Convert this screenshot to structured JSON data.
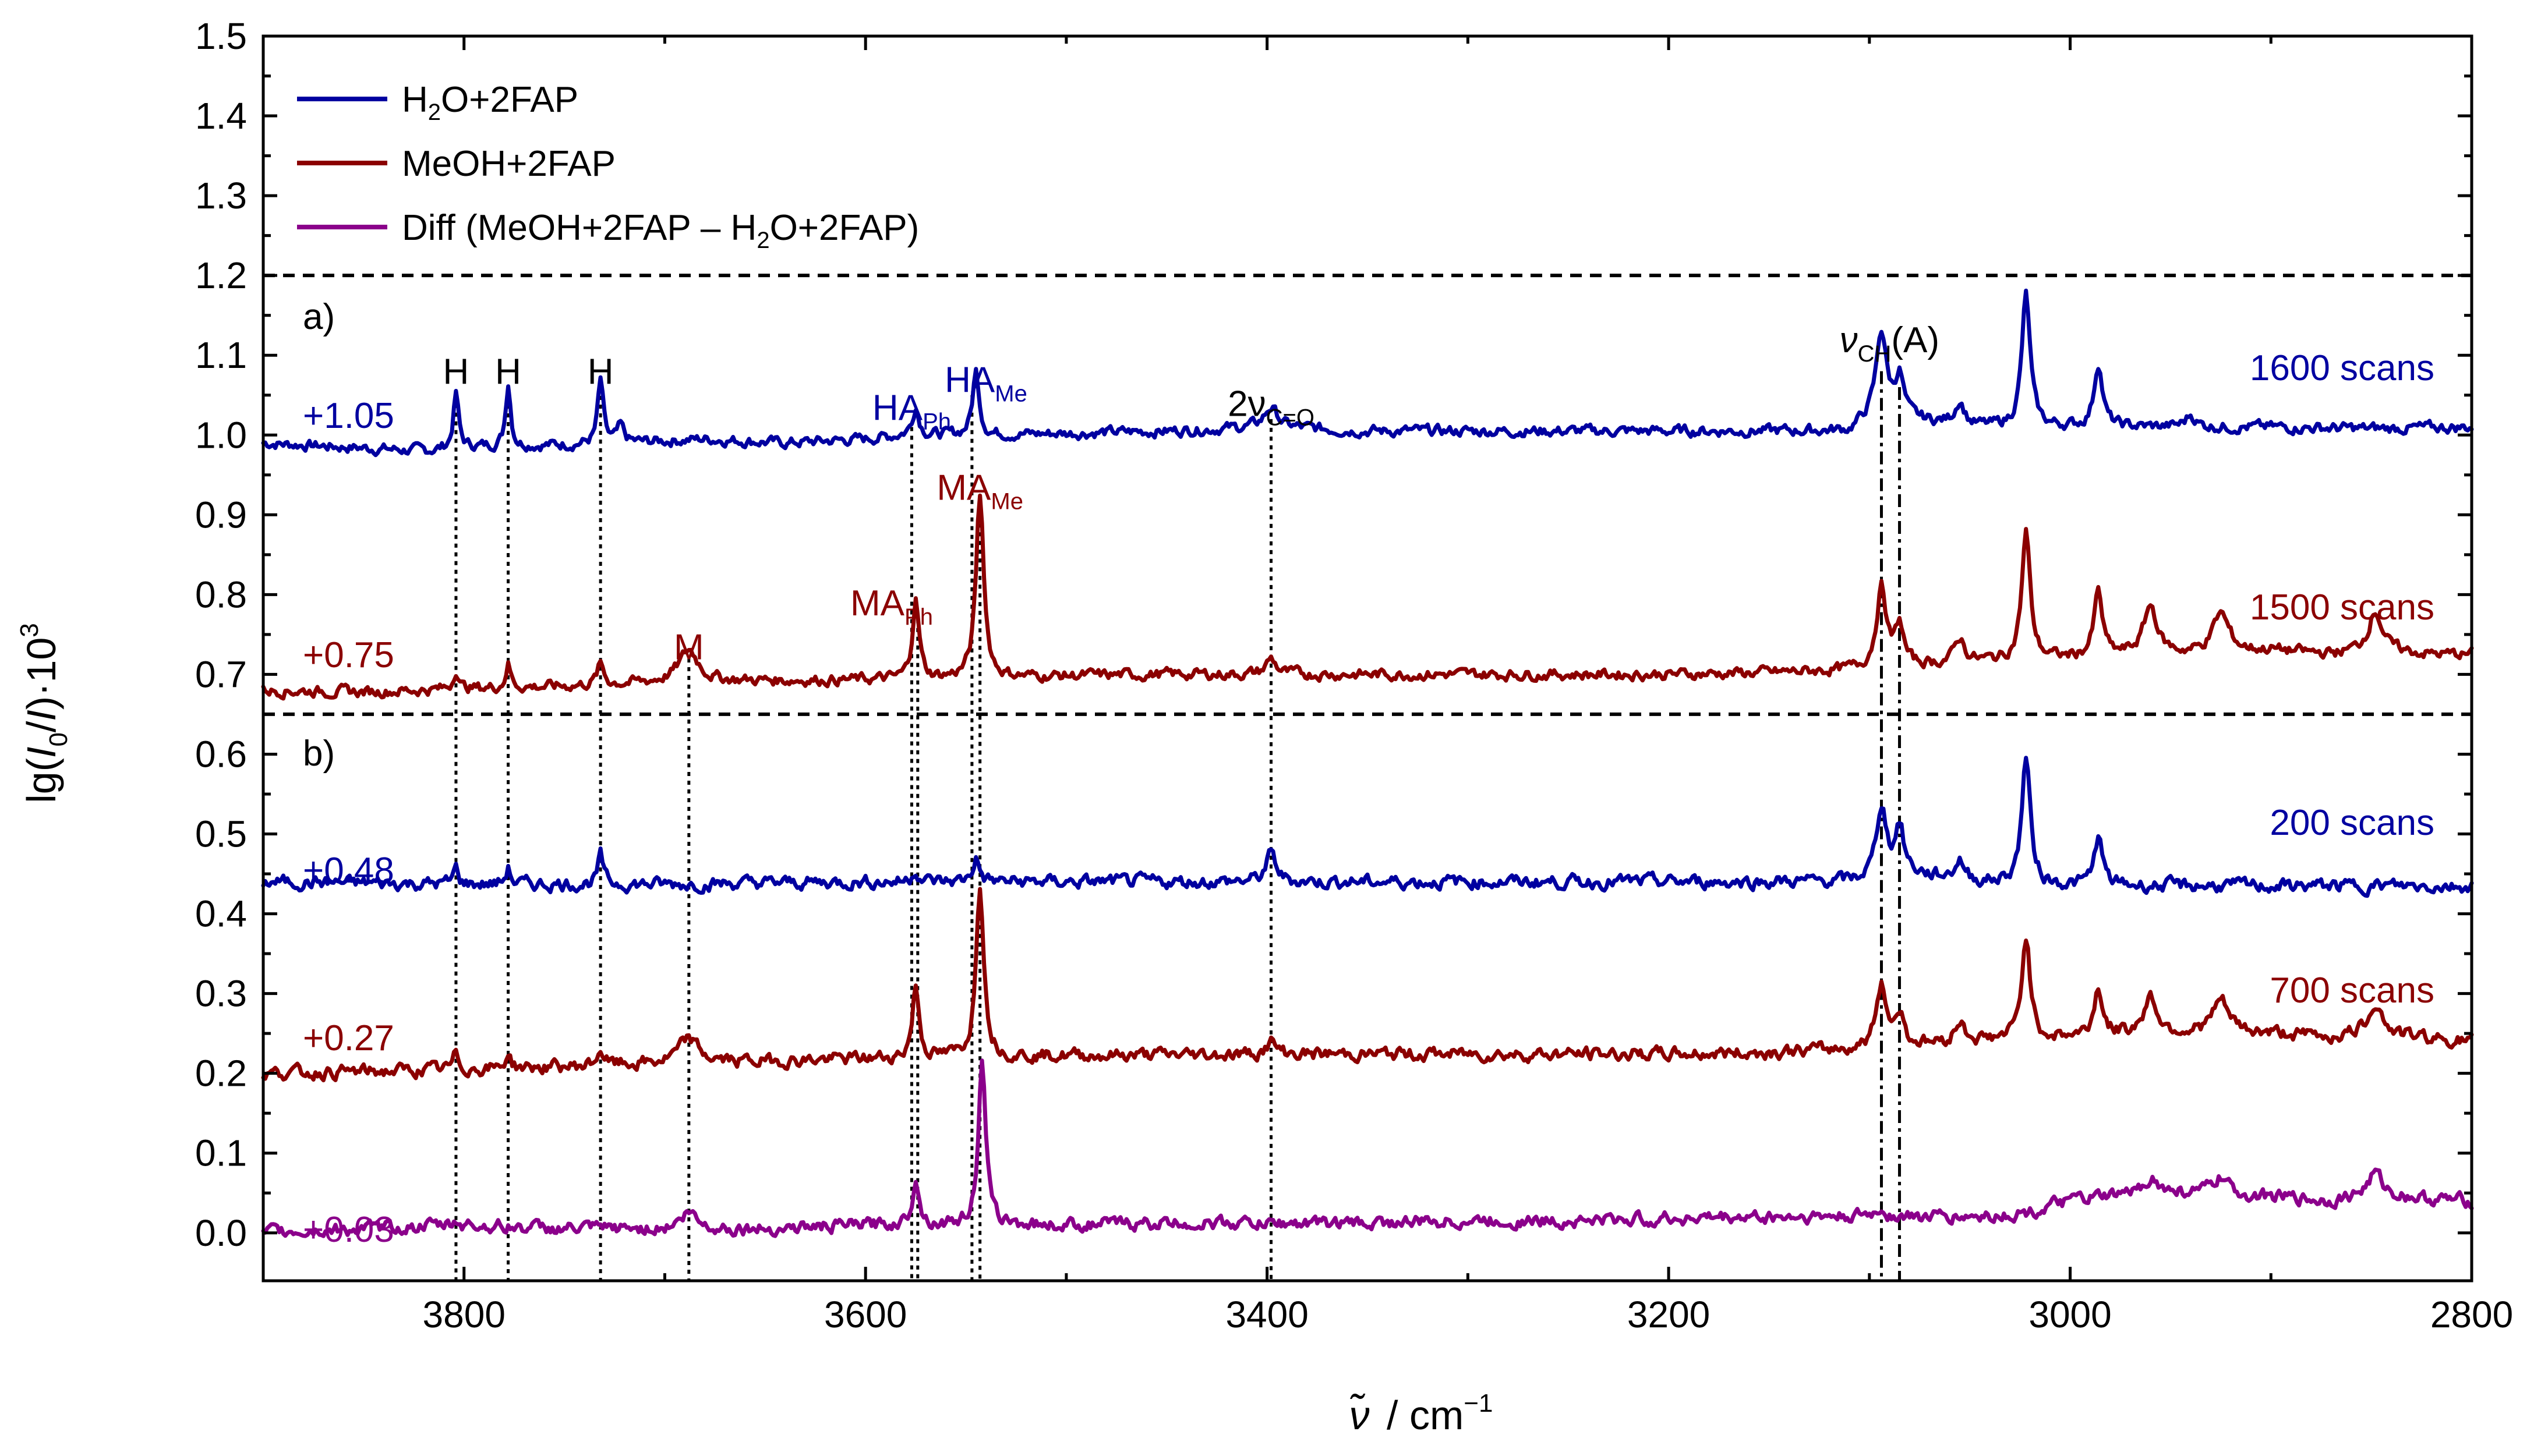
{
  "chart_data": {
    "type": "line",
    "title": "",
    "xlabel_symbol": "ν̃",
    "xlabel_unit": "cm",
    "xlabel_exp": "−1",
    "ylabel": {
      "pre": "lg(",
      "i0": "I",
      "i0sub": "0",
      "slash": "/",
      "i": "I",
      "post": ")·10",
      "exp": "3"
    },
    "xlim": [
      3900,
      2800
    ],
    "ylim": [
      -0.06,
      1.5
    ],
    "x_ticks": [
      3800,
      3600,
      3400,
      3200,
      3000,
      2800
    ],
    "y_ticks": [
      0.0,
      0.1,
      0.2,
      0.3,
      0.4,
      0.5,
      0.6,
      0.7,
      0.8,
      0.9,
      1.0,
      1.1,
      1.2,
      1.3,
      1.4,
      1.5
    ],
    "separators": [
      1.2,
      0.65
    ],
    "panel_labels": {
      "a": "a)",
      "b": "b)"
    },
    "legend": [
      {
        "name": "H2O+2FAP",
        "parts": [
          "H",
          "2",
          "O+2FAP"
        ],
        "color": "#0000a0"
      },
      {
        "name": "MeOH+2FAP",
        "parts": [
          "MeOH+2FAP",
          "",
          ""
        ],
        "color": "#8b0000"
      },
      {
        "name": "Diff (MeOH+2FAP − H2O+2FAP)",
        "parts": [
          "Diff (MeOH+2FAP – H",
          "2",
          "O+2FAP)"
        ],
        "color": "#8b008b"
      }
    ],
    "series": [
      {
        "name": "H2O+2FAP (a)",
        "color": "#0000a0",
        "offset": 1.05,
        "offset_label": "+1.05",
        "scans": "1600 scans",
        "noise": 0.005,
        "points": [
          [
            3900,
            -0.06
          ],
          [
            3860,
            -0.065
          ],
          [
            3820,
            -0.07
          ],
          [
            3800,
            -0.065
          ],
          [
            3760,
            -0.063
          ],
          [
            3720,
            -0.06
          ],
          [
            3680,
            -0.055
          ],
          [
            3640,
            -0.06
          ],
          [
            3600,
            -0.055
          ],
          [
            3580,
            -0.05
          ],
          [
            3540,
            -0.05
          ],
          [
            3500,
            -0.048
          ],
          [
            3450,
            -0.045
          ],
          [
            3400,
            -0.04
          ],
          [
            3350,
            -0.045
          ],
          [
            3300,
            -0.045
          ],
          [
            3250,
            -0.045
          ],
          [
            3200,
            -0.045
          ],
          [
            3150,
            -0.045
          ],
          [
            3110,
            -0.045
          ],
          [
            3095,
            -0.02
          ],
          [
            3080,
            -0.03
          ],
          [
            3050,
            -0.04
          ],
          [
            3000,
            -0.04
          ],
          [
            2950,
            -0.04
          ],
          [
            2900,
            -0.04
          ],
          [
            2850,
            -0.042
          ],
          [
            2800,
            -0.04
          ]
        ],
        "peaks": [
          [
            3804,
            0.07,
            1.5
          ],
          [
            3778,
            0.08,
            1.5
          ],
          [
            3732,
            0.08,
            1.6
          ],
          [
            3722,
            0.02,
            2
          ],
          [
            3575,
            0.035,
            2
          ],
          [
            3545,
            0.08,
            2
          ],
          [
            3398,
            0.025,
            4
          ],
          [
            3094,
            0.1,
            3
          ],
          [
            3085,
            0.05,
            2.5
          ],
          [
            3055,
            0.03,
            3
          ],
          [
            3022,
            0.165,
            2.5
          ],
          [
            2986,
            0.08,
            2.5
          ],
          [
            2940,
            0.015,
            3
          ]
        ]
      },
      {
        "name": "MeOH+2FAP (a)",
        "color": "#8b0000",
        "offset": 0.75,
        "offset_label": "+0.75",
        "scans": "1500 scans",
        "noise": 0.005,
        "points": [
          [
            3900,
            -0.07
          ],
          [
            3850,
            -0.072
          ],
          [
            3800,
            -0.068
          ],
          [
            3750,
            -0.065
          ],
          [
            3700,
            -0.06
          ],
          [
            3650,
            -0.058
          ],
          [
            3600,
            -0.057
          ],
          [
            3550,
            -0.055
          ],
          [
            3500,
            -0.052
          ],
          [
            3450,
            -0.05
          ],
          [
            3400,
            -0.05
          ],
          [
            3350,
            -0.05
          ],
          [
            3300,
            -0.05
          ],
          [
            3250,
            -0.05
          ],
          [
            3200,
            -0.05
          ],
          [
            3150,
            -0.048
          ],
          [
            3110,
            -0.045
          ],
          [
            3080,
            -0.04
          ],
          [
            3050,
            -0.035
          ],
          [
            3000,
            -0.03
          ],
          [
            2960,
            -0.025
          ],
          [
            2930,
            -0.025
          ],
          [
            2900,
            -0.02
          ],
          [
            2870,
            -0.025
          ],
          [
            2850,
            -0.02
          ],
          [
            2820,
            -0.025
          ],
          [
            2800,
            -0.025
          ]
        ],
        "peaks": [
          [
            3804,
            0.025,
            1.5
          ],
          [
            3778,
            0.03,
            1.5
          ],
          [
            3732,
            0.025,
            2
          ],
          [
            3688,
            0.04,
            6
          ],
          [
            3575,
            0.1,
            2
          ],
          [
            3543,
            0.23,
            2.3
          ],
          [
            3398,
            0.02,
            3
          ],
          [
            3094,
            0.1,
            3
          ],
          [
            3085,
            0.05,
            2.5
          ],
          [
            3055,
            0.03,
            3
          ],
          [
            3022,
            0.16,
            2.5
          ],
          [
            2986,
            0.08,
            2.5
          ],
          [
            2960,
            0.06,
            4
          ],
          [
            2925,
            0.05,
            5
          ],
          [
            2848,
            0.05,
            4
          ]
        ]
      },
      {
        "name": "H2O+2FAP (b)",
        "color": "#0000a0",
        "offset": 0.48,
        "offset_label": "+0.48",
        "scans": "200 scans",
        "noise": 0.006,
        "points": [
          [
            3900,
            -0.04
          ],
          [
            3800,
            -0.043
          ],
          [
            3700,
            -0.043
          ],
          [
            3600,
            -0.04
          ],
          [
            3500,
            -0.04
          ],
          [
            3400,
            -0.04
          ],
          [
            3300,
            -0.04
          ],
          [
            3200,
            -0.04
          ],
          [
            3110,
            -0.04
          ],
          [
            3080,
            -0.03
          ],
          [
            3050,
            -0.04
          ],
          [
            3000,
            -0.045
          ],
          [
            2900,
            -0.045
          ],
          [
            2800,
            -0.045
          ]
        ],
        "peaks": [
          [
            3804,
            0.02,
            1.5
          ],
          [
            3778,
            0.02,
            1.5
          ],
          [
            3732,
            0.035,
            1.6
          ],
          [
            3575,
            0.015,
            2
          ],
          [
            3545,
            0.03,
            2
          ],
          [
            3398,
            0.035,
            3
          ],
          [
            3094,
            0.09,
            3
          ],
          [
            3085,
            0.06,
            2.5
          ],
          [
            3055,
            0.025,
            3
          ],
          [
            3022,
            0.16,
            2.5
          ],
          [
            2986,
            0.06,
            2.5
          ]
        ]
      },
      {
        "name": "MeOH+2FAP (b)",
        "color": "#8b0000",
        "offset": 0.27,
        "offset_label": "+0.27",
        "scans": "700 scans",
        "noise": 0.006,
        "points": [
          [
            3900,
            -0.07
          ],
          [
            3850,
            -0.068
          ],
          [
            3800,
            -0.065
          ],
          [
            3750,
            -0.062
          ],
          [
            3700,
            -0.058
          ],
          [
            3650,
            -0.055
          ],
          [
            3600,
            -0.052
          ],
          [
            3550,
            -0.05
          ],
          [
            3500,
            -0.048
          ],
          [
            3450,
            -0.047
          ],
          [
            3400,
            -0.046
          ],
          [
            3350,
            -0.046
          ],
          [
            3300,
            -0.046
          ],
          [
            3250,
            -0.046
          ],
          [
            3200,
            -0.046
          ],
          [
            3150,
            -0.044
          ],
          [
            3110,
            -0.04
          ],
          [
            3080,
            -0.035
          ],
          [
            3050,
            -0.03
          ],
          [
            3000,
            -0.025
          ],
          [
            2960,
            -0.02
          ],
          [
            2930,
            -0.02
          ],
          [
            2900,
            -0.02
          ],
          [
            2870,
            -0.025
          ],
          [
            2850,
            -0.02
          ],
          [
            2800,
            -0.03
          ]
        ],
        "peaks": [
          [
            3804,
            0.02,
            1.5
          ],
          [
            3778,
            0.02,
            1.5
          ],
          [
            3732,
            0.02,
            2
          ],
          [
            3688,
            0.03,
            6
          ],
          [
            3575,
            0.09,
            2
          ],
          [
            3543,
            0.22,
            2.3
          ],
          [
            3398,
            0.015,
            3
          ],
          [
            3094,
            0.08,
            3
          ],
          [
            3085,
            0.04,
            2.5
          ],
          [
            3055,
            0.025,
            3
          ],
          [
            3022,
            0.13,
            2.5
          ],
          [
            2986,
            0.06,
            2.5
          ],
          [
            2960,
            0.045,
            4
          ],
          [
            2925,
            0.04,
            5
          ],
          [
            2848,
            0.04,
            4
          ]
        ]
      },
      {
        "name": "Diff (MeOH+2FAP − H2O+2FAP)",
        "color": "#8b008b",
        "offset": 0.03,
        "offset_label": "+0.03",
        "scans": "",
        "noise": 0.006,
        "points": [
          [
            3900,
            -0.03
          ],
          [
            3850,
            -0.025
          ],
          [
            3800,
            -0.02
          ],
          [
            3750,
            -0.025
          ],
          [
            3700,
            -0.025
          ],
          [
            3650,
            -0.025
          ],
          [
            3600,
            -0.02
          ],
          [
            3550,
            -0.02
          ],
          [
            3500,
            -0.02
          ],
          [
            3450,
            -0.018
          ],
          [
            3400,
            -0.018
          ],
          [
            3350,
            -0.018
          ],
          [
            3300,
            -0.015
          ],
          [
            3250,
            -0.015
          ],
          [
            3200,
            -0.012
          ],
          [
            3150,
            -0.01
          ],
          [
            3100,
            -0.01
          ],
          [
            3050,
            -0.01
          ],
          [
            3020,
            -0.005
          ],
          [
            3000,
            0.01
          ],
          [
            2960,
            0.02
          ],
          [
            2930,
            0.02
          ],
          [
            2900,
            0.015
          ],
          [
            2870,
            0.01
          ],
          [
            2850,
            0.02
          ],
          [
            2820,
            0.012
          ],
          [
            2800,
            0.01
          ]
        ],
        "peaks": [
          [
            3804,
            0.005,
            1.5
          ],
          [
            3688,
            0.02,
            5
          ],
          [
            3575,
            0.06,
            2
          ],
          [
            3542,
            0.2,
            2.2
          ],
          [
            3094,
            0.01,
            3
          ],
          [
            2960,
            0.02,
            4
          ],
          [
            2925,
            0.02,
            4
          ],
          [
            2848,
            0.025,
            4
          ]
        ]
      }
    ],
    "guides": [
      {
        "x": 3804,
        "y_top": 1.05,
        "style": "dot"
      },
      {
        "x": 3778,
        "y_top": 1.06,
        "style": "dot"
      },
      {
        "x": 3732,
        "y_top": 1.06,
        "style": "dot"
      },
      {
        "x": 3688,
        "y_top": 0.72,
        "style": "dash"
      },
      {
        "x": 3577,
        "y_top": 1.01,
        "style": "dot"
      },
      {
        "x": 3574,
        "y_top": 0.78,
        "style": "dash"
      },
      {
        "x": 3547,
        "y_top": 1.05,
        "style": "dot"
      },
      {
        "x": 3543,
        "y_top": 0.9,
        "style": "dash"
      },
      {
        "x": 3398,
        "y_top": 1.02,
        "style": "dash"
      },
      {
        "x": 3094,
        "y_top": 1.08,
        "style": "dashdot"
      },
      {
        "x": 3085,
        "y_top": 1.06,
        "style": "dashdot"
      }
    ],
    "annotations": [
      {
        "id": "H1",
        "text": "H",
        "sub": "",
        "x": 3804,
        "y": 1.08,
        "color": "#000000"
      },
      {
        "id": "H2",
        "text": "H",
        "sub": "",
        "x": 3778,
        "y": 1.08,
        "color": "#000000"
      },
      {
        "id": "H3",
        "text": "H",
        "sub": "",
        "x": 3732,
        "y": 1.08,
        "color": "#000000"
      },
      {
        "id": "HAPh",
        "text": "HA",
        "sub": "Ph",
        "x": 3577,
        "y": 1.035,
        "color": "#0000a0"
      },
      {
        "id": "HAMe",
        "text": "HA",
        "sub": "Me",
        "x": 3540,
        "y": 1.07,
        "color": "#0000a0"
      },
      {
        "id": "nuCO",
        "text": "2ν",
        "sub": "C=O",
        "x": 3398,
        "y": 1.04,
        "color": "#000000"
      },
      {
        "id": "nuCH",
        "text": "ν",
        "sub": "CH",
        "tail": "(A)",
        "x": 3090,
        "y": 1.12,
        "color": "#000000"
      },
      {
        "id": "MAMe",
        "text": "MA",
        "sub": "Me",
        "x": 3543,
        "y": 0.935,
        "color": "#8b0000"
      },
      {
        "id": "MAPh",
        "text": "MA",
        "sub": "Ph",
        "x": 3587,
        "y": 0.79,
        "color": "#8b0000"
      },
      {
        "id": "M",
        "text": "M",
        "sub": "",
        "x": 3688,
        "y": 0.735,
        "color": "#8b0000"
      }
    ]
  }
}
